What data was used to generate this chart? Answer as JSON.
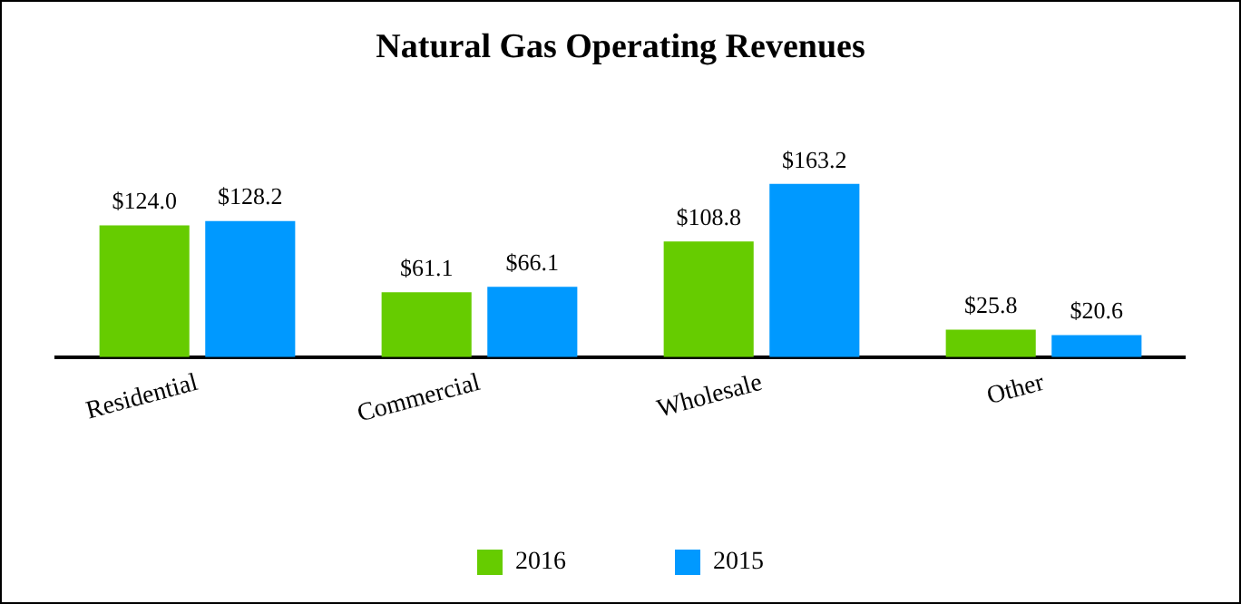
{
  "chart_data": {
    "type": "bar",
    "title": "Natural Gas Operating Revenues",
    "categories": [
      "Residential",
      "Commercial",
      "Wholesale",
      "Other"
    ],
    "series": [
      {
        "name": "2016",
        "color": "#66cc00",
        "values": [
          124.0,
          61.1,
          108.8,
          25.8
        ],
        "value_labels": [
          "$124.0",
          "$61.1",
          "$108.8",
          "$25.8"
        ]
      },
      {
        "name": "2015",
        "color": "#0099ff",
        "values": [
          128.2,
          66.1,
          163.2,
          20.6
        ],
        "value_labels": [
          "$128.2",
          "$66.1",
          "$163.2",
          "$20.6"
        ]
      }
    ],
    "legend": "bottom",
    "grid": false
  }
}
